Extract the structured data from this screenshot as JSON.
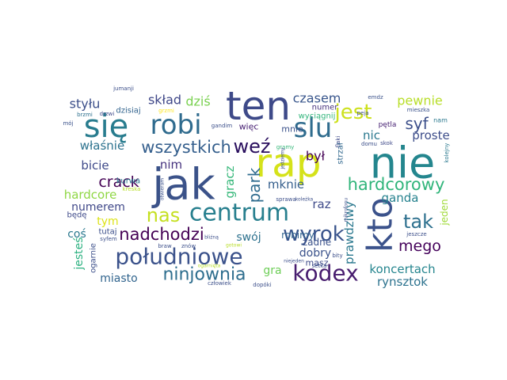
{
  "words": [
    {
      "text": "jak",
      "color": "#3b5289",
      "weight": 1.0
    },
    {
      "text": "nie",
      "color": "#24868e",
      "weight": 1.0
    },
    {
      "text": "rap",
      "color": "#d5e21a",
      "weight": 0.9
    },
    {
      "text": "ten",
      "color": "#3e4a89",
      "weight": 0.9
    },
    {
      "text": "kto",
      "color": "#3b528b",
      "weight": 0.75
    },
    {
      "text": "się",
      "color": "#287c8e",
      "weight": 0.75
    },
    {
      "text": "robi",
      "color": "#2f6b8e",
      "weight": 0.65
    },
    {
      "text": "slu",
      "color": "#2f6c8e",
      "weight": 0.65
    },
    {
      "text": "centrum",
      "color": "#277f8e",
      "weight": 0.6
    },
    {
      "text": "południowe",
      "color": "#3b528b",
      "weight": 0.55
    },
    {
      "text": "kodex",
      "color": "#481d6f",
      "weight": 0.55
    },
    {
      "text": "nas",
      "color": "#c5e021",
      "weight": 0.5
    },
    {
      "text": "wyrok",
      "color": "#3a548c",
      "weight": 0.5
    },
    {
      "text": "jest",
      "color": "#cde11d",
      "weight": 0.5
    },
    {
      "text": "weź",
      "color": "#2a0f5e",
      "weight": 0.45
    },
    {
      "text": "tak",
      "color": "#2d708e",
      "weight": 0.45
    },
    {
      "text": "ninjownia",
      "color": "#2e6e8e",
      "weight": 0.42
    },
    {
      "text": "nadchodzi",
      "color": "#440154",
      "weight": 0.42
    },
    {
      "text": "wszystkich",
      "color": "#355f8d",
      "weight": 0.42
    },
    {
      "text": "hardcorowy",
      "color": "#31b57b",
      "weight": 0.42
    },
    {
      "text": "park",
      "color": "#2f6c8e",
      "weight": 0.4
    },
    {
      "text": "syf",
      "color": "#3c4f8a",
      "weight": 0.38
    },
    {
      "text": "crack",
      "color": "#440154",
      "weight": 0.38
    },
    {
      "text": "mego",
      "color": "#44015a",
      "weight": 0.38
    },
    {
      "text": "czasem",
      "color": "#39568c",
      "weight": 0.33
    },
    {
      "text": "pewnie",
      "color": "#b8de29",
      "weight": 0.32
    },
    {
      "text": "skład",
      "color": "#3f4788",
      "weight": 0.32
    },
    {
      "text": "styłu",
      "color": "#3c4f8a",
      "weight": 0.32
    },
    {
      "text": "dziś",
      "color": "#7ad151",
      "weight": 0.32
    },
    {
      "text": "był",
      "color": "#440154",
      "weight": 0.35
    },
    {
      "text": "bicie",
      "color": "#3e4989",
      "weight": 0.3
    },
    {
      "text": "nic",
      "color": "#2a788e",
      "weight": 0.3
    },
    {
      "text": "proste",
      "color": "#3d4d8a",
      "weight": 0.3
    },
    {
      "text": "właśnie",
      "color": "#2c728e",
      "weight": 0.3
    },
    {
      "text": "gracz",
      "color": "#35b779",
      "weight": 0.3
    },
    {
      "text": "hardcore",
      "color": "#8fd744",
      "weight": 0.3
    },
    {
      "text": "nim",
      "color": "#46337e",
      "weight": 0.3
    },
    {
      "text": "mknie",
      "color": "#355f8d",
      "weight": 0.3
    },
    {
      "text": "ganda",
      "color": "#26828e",
      "weight": 0.3
    },
    {
      "text": "raz",
      "color": "#3e4a89",
      "weight": 0.3
    },
    {
      "text": "prawdziwy",
      "color": "#2a788e",
      "weight": 0.28
    },
    {
      "text": "koncertach",
      "color": "#25858e",
      "weight": 0.28
    },
    {
      "text": "rynsztok",
      "color": "#2c728e",
      "weight": 0.28
    },
    {
      "text": "numerem",
      "color": "#3f4788",
      "weight": 0.27
    },
    {
      "text": "swój",
      "color": "#2d718e",
      "weight": 0.27
    },
    {
      "text": "dobry",
      "color": "#3b528b",
      "weight": 0.27
    },
    {
      "text": "jesteś",
      "color": "#2ab07f",
      "weight": 0.27
    },
    {
      "text": "gra",
      "color": "#6ece58",
      "weight": 0.27
    },
    {
      "text": "miasto",
      "color": "#32658e",
      "weight": 0.25
    },
    {
      "text": "tym",
      "color": "#dde318",
      "weight": 0.25
    },
    {
      "text": "coś",
      "color": "#2a788e",
      "weight": 0.25
    },
    {
      "text": "robimy",
      "color": "#32648e",
      "weight": 0.22
    },
    {
      "text": "żadne",
      "color": "#3b528b",
      "weight": 0.22
    },
    {
      "text": "jeden",
      "color": "#a0da39",
      "weight": 0.22
    },
    {
      "text": "więc",
      "color": "#482173",
      "weight": 0.18
    },
    {
      "text": "mnie",
      "color": "#3b528b",
      "weight": 0.18
    },
    {
      "text": "masz",
      "color": "#3e4a89",
      "weight": 0.18
    },
    {
      "text": "numer",
      "color": "#46327e",
      "weight": 0.16
    },
    {
      "text": "wyciągnij",
      "color": "#31b57b",
      "weight": 0.16
    },
    {
      "text": "kurwa",
      "color": "#2a788e",
      "weight": 0.16
    },
    {
      "text": "dzisiaj",
      "color": "#32648e",
      "weight": 0.16
    },
    {
      "text": "będę",
      "color": "#3e4a89",
      "weight": 0.16
    },
    {
      "text": "tutaj",
      "color": "#3c4f8a",
      "weight": 0.16
    },
    {
      "text": "ogarnie",
      "color": "#3c4f8a",
      "weight": 0.16
    },
    {
      "text": "strzał",
      "color": "#31688e",
      "weight": 0.15
    },
    {
      "text": "pętla",
      "color": "#482374",
      "weight": 0.14
    },
    {
      "text": "jumanji",
      "color": "#3c4f8a",
      "weight": 0.12
    },
    {
      "text": "brzmi",
      "color": "#2d708e",
      "weight": 0.12
    },
    {
      "text": "drzwi",
      "color": "#3e4989",
      "weight": 0.12
    },
    {
      "text": "mój",
      "color": "#3b528b",
      "weight": 0.12
    },
    {
      "text": "gramy",
      "color": "#35b779",
      "weight": 0.12
    },
    {
      "text": "grzmi",
      "color": "#fde725",
      "weight": 0.12
    },
    {
      "text": "gandim",
      "color": "#3c4f8a",
      "weight": 0.11
    },
    {
      "text": "emdz",
      "color": "#3b528b",
      "weight": 0.11
    },
    {
      "text": "nam",
      "color": "#2a788e",
      "weight": 0.13
    },
    {
      "text": "peja",
      "color": "#3c4f8a",
      "weight": 0.12
    },
    {
      "text": "mieszka",
      "color": "#3b528b",
      "weight": 0.12
    },
    {
      "text": "domu",
      "color": "#3c4f8a",
      "weight": 0.12
    },
    {
      "text": "skok",
      "color": "#3e4989",
      "weight": 0.12
    },
    {
      "text": "flaki",
      "color": "#3e4a89",
      "weight": 0.12
    },
    {
      "text": "kolejny",
      "color": "#2a788e",
      "weight": 0.12
    },
    {
      "text": "syfem",
      "color": "#3c4f8a",
      "weight": 0.12
    },
    {
      "text": "kreska",
      "color": "#b8de29",
      "weight": 0.12
    },
    {
      "text": "otwieram",
      "color": "#3b528b",
      "weight": 0.11
    },
    {
      "text": "bliźną",
      "color": "#3c4f8a",
      "weight": 0.11
    },
    {
      "text": "jedziemy",
      "color": "#3c4f8a",
      "weight": 0.11
    },
    {
      "text": "sprawa",
      "color": "#3c4f8a",
      "weight": 0.11
    },
    {
      "text": "koleżka",
      "color": "#3c4f8a",
      "weight": 0.11
    },
    {
      "text": "mikrofonu",
      "color": "#3c4f8a",
      "weight": 0.11
    },
    {
      "text": "jeszcze",
      "color": "#3c4f8a",
      "weight": 0.11
    },
    {
      "text": "braw",
      "color": "#3c4f8a",
      "weight": 0.11
    },
    {
      "text": "znów",
      "color": "#3c4f8a",
      "weight": 0.11
    },
    {
      "text": "ogarnięta",
      "color": "#b8de29",
      "weight": 0.11
    },
    {
      "text": "gotowi",
      "color": "#b8de29",
      "weight": 0.11
    },
    {
      "text": "niejeden",
      "color": "#3c4f8a",
      "weight": 0.11
    },
    {
      "text": "setka",
      "color": "#3c4f8a",
      "weight": 0.11
    },
    {
      "text": "bity",
      "color": "#3c4f8a",
      "weight": 0.11
    },
    {
      "text": "dopóki",
      "color": "#3c4f8a",
      "weight": 0.11
    },
    {
      "text": "człowiek",
      "color": "#3c4f8a",
      "weight": 0.11
    }
  ]
}
